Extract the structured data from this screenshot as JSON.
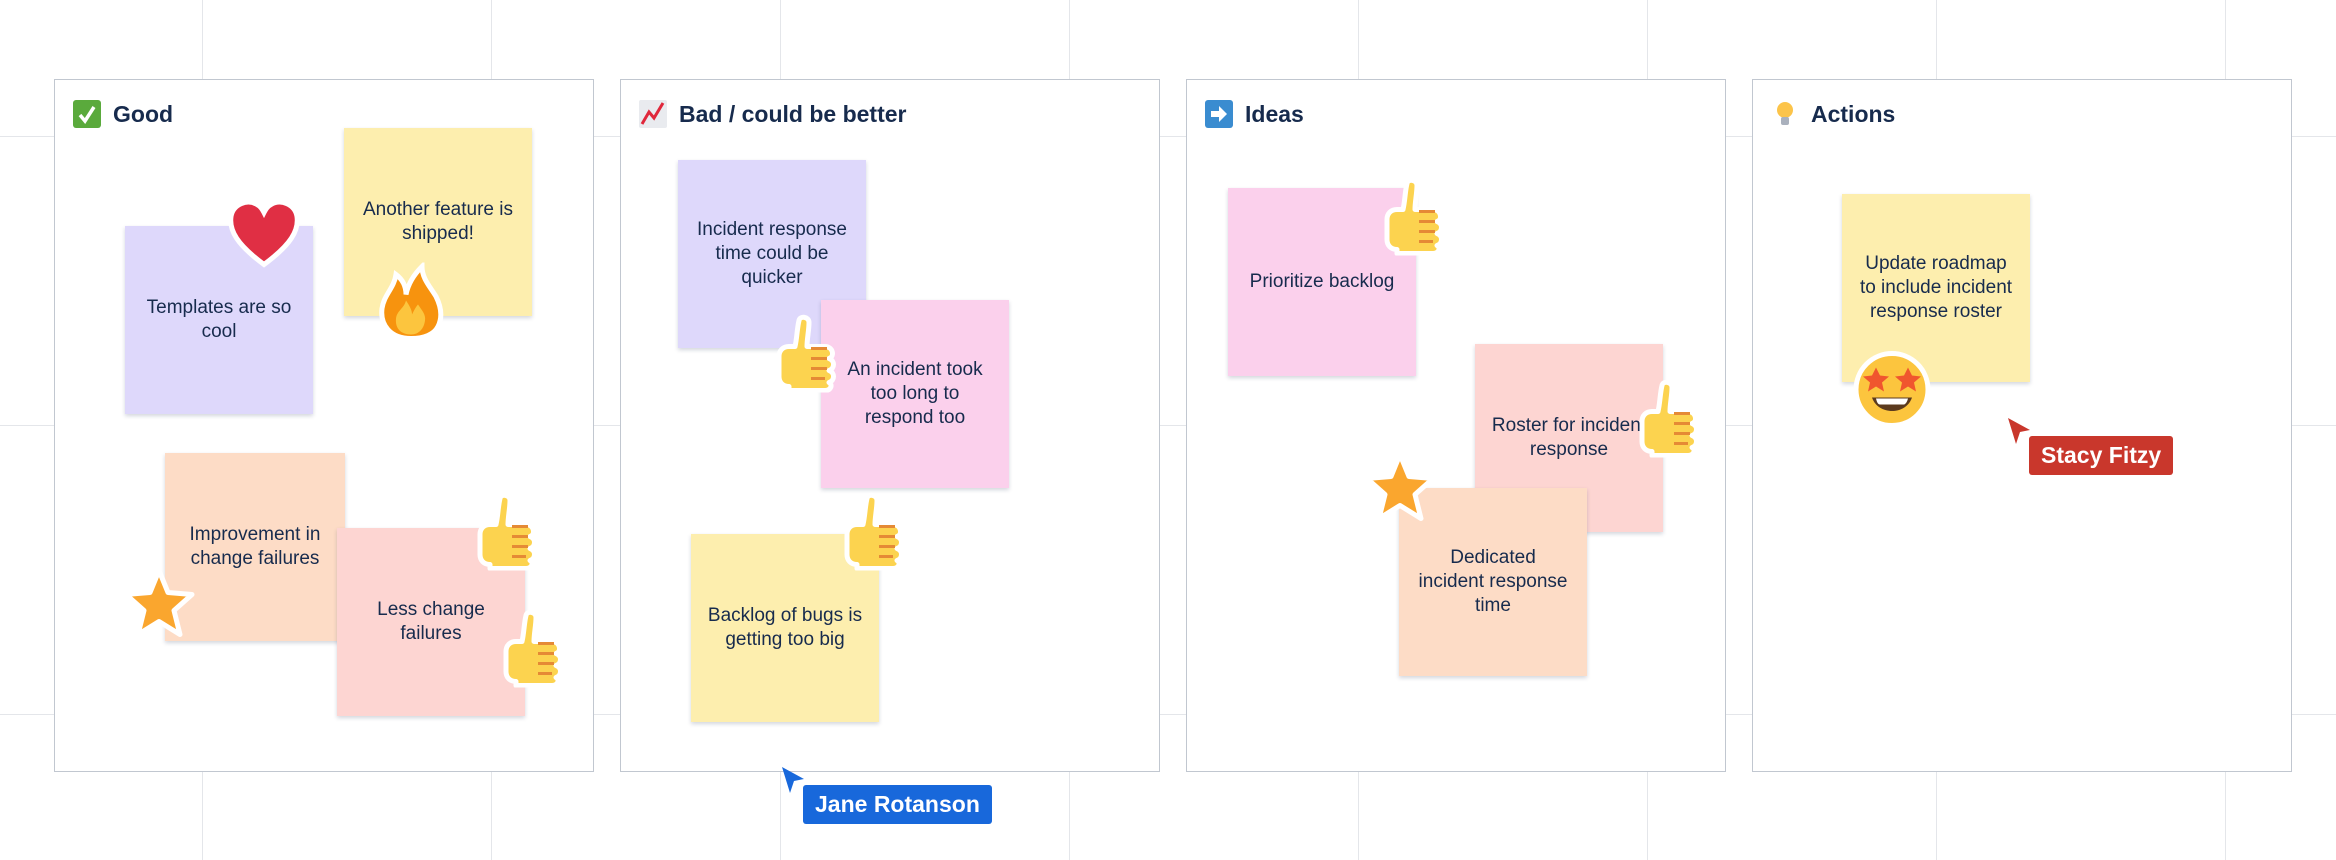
{
  "colors": {
    "lavender": "#ded8fb",
    "yellow": "#fdeeae",
    "peach": "#fddcc6",
    "salmon": "#fdd5d2",
    "pink": "#fbd0ec",
    "frame_border": "#c1c7d0",
    "text": "#172b4d"
  },
  "columns": [
    {
      "title": "Good",
      "icon": "check-mark-icon",
      "notes": [
        "Templates are so cool",
        "Another feature is shipped!",
        "Improvement in change failures",
        "Less change failures"
      ]
    },
    {
      "title": "Bad / could be better",
      "icon": "chart-decreasing-icon",
      "notes": [
        "Incident response time could be quicker",
        "An incident took too long to respond too",
        "Backlog of bugs is getting too big"
      ]
    },
    {
      "title": "Ideas",
      "icon": "arrow-right-icon",
      "notes": [
        "Prioritize backlog",
        "Roster for incident response",
        "Dedicated incident response time"
      ]
    },
    {
      "title": "Actions",
      "icon": "light-bulb-icon",
      "notes": [
        "Update roadmap to include incident response roster"
      ]
    }
  ],
  "reactions": [
    "heart",
    "fire",
    "star",
    "thumbs-up",
    "thumbs-up",
    "thumbs-up",
    "thumbs-up",
    "thumbs-up",
    "thumbs-up",
    "star",
    "star-struck"
  ],
  "cursors": [
    {
      "name": "Jane Rotanson",
      "color": "#1868db"
    },
    {
      "name": "Stacy Fitzy",
      "color": "#c9372c"
    }
  ]
}
